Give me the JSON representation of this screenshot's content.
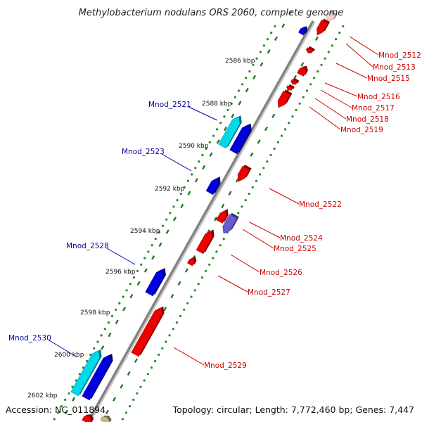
{
  "header": {
    "title": "Methylobacterium nodulans ORS 2060, complete genome"
  },
  "footer": {
    "accession": "Accession: NC_011894",
    "topology": "Topology: circular; Length: 7,772,460 bp; Genes: 7,447"
  },
  "colors": {
    "forward_gene": "#ee0000",
    "reverse_gene": "#0000dd",
    "reverse_gene_light": "#00d8ee",
    "pseudo_gene": "#6a5acd",
    "backbone": "#8a8a8a",
    "dots_outer": "#228b22",
    "dashes_inner": "#1e7a1e",
    "label_forward": "#cc0000",
    "label_reverse": "#0000aa"
  },
  "ticks": [
    "2586 kbp",
    "2588 kbp",
    "2590 kbp",
    "2592 kbp",
    "2594 kbp",
    "2596 kbp",
    "2598 kbp",
    "2600 kbp",
    "2602 kbp"
  ],
  "labels_forward": [
    "Mnod_2512",
    "Mnod_2513",
    "Mnod_2515",
    "Mnod_2516",
    "Mnod_2517",
    "Mnod_2518",
    "Mnod_2519",
    "Mnod_2522",
    "Mnod_2524",
    "Mnod_2525",
    "Mnod_2526",
    "Mnod_2527",
    "Mnod_2529"
  ],
  "labels_reverse": [
    "Mnod_2521",
    "Mnod_2523",
    "Mnod_2528",
    "Mnod_2530"
  ]
}
